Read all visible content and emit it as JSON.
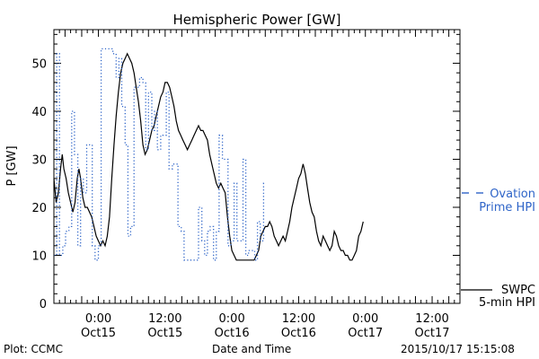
{
  "chart_data": {
    "type": "line",
    "title": "Hemispheric Power [GW]",
    "ylabel": "P [GW]",
    "xlabel": "Date and Time",
    "ylim": [
      0,
      57
    ],
    "yticks": [
      0,
      10,
      20,
      30,
      40,
      50
    ],
    "xlim": [
      "2015-10-14 16:00",
      "2015-10-17 17:00"
    ],
    "xticks": [
      {
        "t": "2015-10-15 00:00",
        "line1": "0:00",
        "line2": "Oct15"
      },
      {
        "t": "2015-10-15 12:00",
        "line1": "12:00",
        "line2": "Oct15"
      },
      {
        "t": "2015-10-16 00:00",
        "line1": "0:00",
        "line2": "Oct16"
      },
      {
        "t": "2015-10-16 12:00",
        "line1": "12:00",
        "line2": "Oct16"
      },
      {
        "t": "2015-10-17 00:00",
        "line1": "0:00",
        "line2": "Oct17"
      },
      {
        "t": "2015-10-17 12:00",
        "line1": "12:00",
        "line2": "Oct17"
      }
    ],
    "start_time": "2015-10-14 16:00",
    "series": [
      {
        "name": "SWPC 5-min HPI",
        "color": "#000000",
        "style": "solid",
        "points": [
          [
            0.0,
            26
          ],
          [
            0.4,
            21
          ],
          [
            0.8,
            23
          ],
          [
            1.2,
            28
          ],
          [
            1.5,
            31
          ],
          [
            1.8,
            28
          ],
          [
            2.2,
            26
          ],
          [
            2.6,
            23
          ],
          [
            3.0,
            21
          ],
          [
            3.4,
            19
          ],
          [
            3.8,
            21
          ],
          [
            4.2,
            26
          ],
          [
            4.5,
            28
          ],
          [
            4.8,
            26
          ],
          [
            5.2,
            22
          ],
          [
            5.6,
            20
          ],
          [
            6.0,
            20
          ],
          [
            6.4,
            19
          ],
          [
            6.8,
            18
          ],
          [
            7.2,
            16
          ],
          [
            7.6,
            14
          ],
          [
            8.0,
            13
          ],
          [
            8.4,
            12
          ],
          [
            8.8,
            13
          ],
          [
            9.2,
            12
          ],
          [
            9.6,
            14
          ],
          [
            10.0,
            18
          ],
          [
            10.4,
            26
          ],
          [
            10.8,
            33
          ],
          [
            11.2,
            39
          ],
          [
            11.6,
            44
          ],
          [
            12.0,
            48
          ],
          [
            12.4,
            50
          ],
          [
            12.8,
            51
          ],
          [
            13.2,
            52
          ],
          [
            13.6,
            51
          ],
          [
            14.0,
            50
          ],
          [
            14.4,
            48
          ],
          [
            14.8,
            45
          ],
          [
            15.2,
            42
          ],
          [
            15.6,
            38
          ],
          [
            16.0,
            33
          ],
          [
            16.4,
            31
          ],
          [
            16.8,
            32
          ],
          [
            17.2,
            34
          ],
          [
            17.6,
            36
          ],
          [
            18.0,
            37
          ],
          [
            18.4,
            39
          ],
          [
            18.8,
            41
          ],
          [
            19.2,
            43
          ],
          [
            19.6,
            44
          ],
          [
            20.0,
            46
          ],
          [
            20.4,
            46
          ],
          [
            20.8,
            45
          ],
          [
            21.2,
            43
          ],
          [
            21.6,
            41
          ],
          [
            22.0,
            38
          ],
          [
            22.4,
            36
          ],
          [
            22.8,
            35
          ],
          [
            23.2,
            34
          ],
          [
            23.6,
            33
          ],
          [
            24.0,
            32
          ],
          [
            24.4,
            33
          ],
          [
            24.8,
            34
          ],
          [
            25.2,
            35
          ],
          [
            25.6,
            36
          ],
          [
            26.0,
            37
          ],
          [
            26.4,
            36
          ],
          [
            26.8,
            36
          ],
          [
            27.2,
            35
          ],
          [
            27.6,
            34
          ],
          [
            28.0,
            31
          ],
          [
            28.4,
            29
          ],
          [
            28.8,
            27
          ],
          [
            29.2,
            25
          ],
          [
            29.6,
            24
          ],
          [
            30.0,
            25
          ],
          [
            30.4,
            24
          ],
          [
            30.8,
            23
          ],
          [
            31.2,
            18
          ],
          [
            31.6,
            14
          ],
          [
            32.0,
            11
          ],
          [
            32.4,
            10
          ],
          [
            32.8,
            9
          ],
          [
            33.2,
            9
          ],
          [
            33.6,
            9
          ],
          [
            34.0,
            9
          ],
          [
            34.4,
            9
          ],
          [
            34.8,
            9
          ],
          [
            35.2,
            9
          ],
          [
            35.6,
            9
          ],
          [
            36.0,
            9
          ],
          [
            36.4,
            10
          ],
          [
            36.8,
            11
          ],
          [
            37.2,
            14
          ],
          [
            37.6,
            15
          ],
          [
            38.0,
            16
          ],
          [
            38.4,
            16
          ],
          [
            38.8,
            17
          ],
          [
            39.2,
            16
          ],
          [
            39.6,
            14
          ],
          [
            40.0,
            13
          ],
          [
            40.4,
            12
          ],
          [
            40.8,
            13
          ],
          [
            41.2,
            14
          ],
          [
            41.6,
            13
          ],
          [
            42.0,
            15
          ],
          [
            42.4,
            17
          ],
          [
            42.8,
            20
          ],
          [
            43.2,
            22
          ],
          [
            43.6,
            24
          ],
          [
            44.0,
            26
          ],
          [
            44.4,
            27
          ],
          [
            44.8,
            29
          ],
          [
            45.2,
            27
          ],
          [
            45.6,
            24
          ],
          [
            46.0,
            21
          ],
          [
            46.4,
            19
          ],
          [
            46.8,
            18
          ],
          [
            47.2,
            15
          ],
          [
            47.6,
            13
          ],
          [
            48.0,
            12
          ],
          [
            48.4,
            14
          ],
          [
            48.8,
            13
          ],
          [
            49.2,
            12
          ],
          [
            49.6,
            11
          ],
          [
            50.0,
            12
          ],
          [
            50.4,
            15
          ],
          [
            50.8,
            14
          ],
          [
            51.2,
            12
          ],
          [
            51.6,
            11
          ],
          [
            52.0,
            11
          ],
          [
            52.4,
            10
          ],
          [
            52.8,
            10
          ],
          [
            53.2,
            9
          ],
          [
            53.6,
            9
          ],
          [
            54.0,
            10
          ],
          [
            54.4,
            11
          ],
          [
            54.8,
            14
          ],
          [
            55.2,
            15
          ],
          [
            55.6,
            17
          ]
        ]
      },
      {
        "name": "Ovation Prime HPI",
        "color": "#2e64c8",
        "style": "dotted-step",
        "points": [
          [
            0.0,
            10
          ],
          [
            0.5,
            52
          ],
          [
            1.0,
            10
          ],
          [
            1.6,
            12
          ],
          [
            2.1,
            15
          ],
          [
            2.7,
            16
          ],
          [
            3.2,
            40
          ],
          [
            3.7,
            31
          ],
          [
            4.3,
            12
          ],
          [
            4.8,
            26
          ],
          [
            5.3,
            23
          ],
          [
            5.9,
            33
          ],
          [
            6.9,
            12
          ],
          [
            7.4,
            9
          ],
          [
            8.0,
            12
          ],
          [
            8.5,
            53
          ],
          [
            9.0,
            53
          ],
          [
            9.6,
            53
          ],
          [
            10.6,
            52
          ],
          [
            11.2,
            47
          ],
          [
            11.7,
            51
          ],
          [
            12.2,
            41
          ],
          [
            12.8,
            33
          ],
          [
            13.3,
            14
          ],
          [
            13.8,
            16
          ],
          [
            14.4,
            45
          ],
          [
            14.9,
            45
          ],
          [
            15.4,
            47
          ],
          [
            16.0,
            46
          ],
          [
            16.5,
            32
          ],
          [
            17.0,
            44
          ],
          [
            17.6,
            36
          ],
          [
            18.1,
            40
          ],
          [
            18.6,
            32
          ],
          [
            19.2,
            35
          ],
          [
            19.7,
            35
          ],
          [
            20.2,
            44
          ],
          [
            20.7,
            28
          ],
          [
            21.3,
            29
          ],
          [
            21.8,
            29
          ],
          [
            22.3,
            16
          ],
          [
            22.9,
            15
          ],
          [
            23.4,
            9
          ],
          [
            23.9,
            9
          ],
          [
            24.4,
            9
          ],
          [
            25.0,
            9
          ],
          [
            25.5,
            9
          ],
          [
            26.0,
            20
          ],
          [
            26.6,
            13
          ],
          [
            27.1,
            10
          ],
          [
            27.6,
            15
          ],
          [
            28.1,
            16
          ],
          [
            28.7,
            9
          ],
          [
            29.2,
            15
          ],
          [
            29.7,
            35
          ],
          [
            30.3,
            30
          ],
          [
            30.8,
            30
          ],
          [
            31.3,
            12
          ],
          [
            31.8,
            13
          ],
          [
            32.4,
            25
          ],
          [
            32.9,
            13
          ],
          [
            33.4,
            13
          ],
          [
            34.0,
            30
          ],
          [
            34.5,
            10
          ],
          [
            35.0,
            11
          ],
          [
            35.6,
            11
          ],
          [
            36.1,
            9
          ],
          [
            36.6,
            17
          ],
          [
            37.1,
            13
          ],
          [
            37.7,
            25
          ],
          [
            38.0,
            25
          ]
        ]
      }
    ],
    "legend": [
      {
        "line1": "Ovation",
        "line2": "Prime HPI",
        "color": "#2e64c8",
        "style": "dashed"
      },
      {
        "line1": "SWPC",
        "line2": "5-min HPI",
        "color": "#000000",
        "style": "solid"
      }
    ],
    "legend_placement": "right"
  },
  "footer": {
    "left": "Plot: CCMC",
    "center": "Date and Time",
    "right": "2015/10/17 15:15:08"
  }
}
